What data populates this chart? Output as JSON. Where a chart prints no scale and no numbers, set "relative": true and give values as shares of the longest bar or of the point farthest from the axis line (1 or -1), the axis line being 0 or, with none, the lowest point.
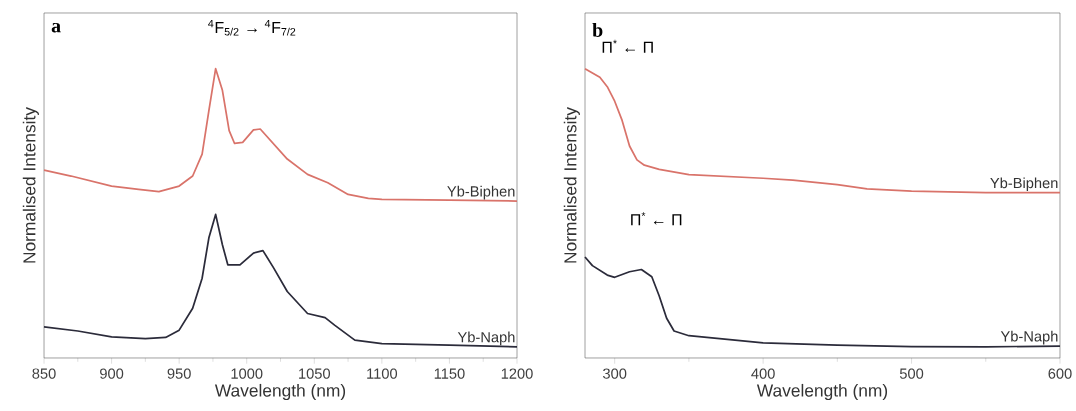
{
  "chart_data": [
    {
      "type": "line",
      "title": "a",
      "xlabel": "Wavelength (nm)",
      "ylabel": "Normalised Intensity",
      "relative": true,
      "legend": false,
      "xlim": [
        850,
        1200
      ],
      "xticks": [
        850,
        900,
        950,
        1000,
        1050,
        1100,
        1150,
        1200
      ],
      "annotations": [
        "$^{4}$F$_{5/2}$ → $^{4}$F$_{7/2}$"
      ],
      "series": [
        {
          "name": "Yb-Biphen",
          "color": "#d9736a",
          "x": [
            850,
            870,
            900,
            920,
            935,
            950,
            960,
            967,
            972,
            977,
            982,
            987,
            991,
            997,
            1005,
            1010,
            1020,
            1030,
            1045,
            1060,
            1075,
            1090,
            1100,
            1150,
            1200
          ],
          "values": [
            0.635,
            0.614,
            0.578,
            0.566,
            0.558,
            0.578,
            0.614,
            0.693,
            0.849,
            1.0,
            0.922,
            0.777,
            0.731,
            0.735,
            0.78,
            0.783,
            0.729,
            0.675,
            0.62,
            0.59,
            0.548,
            0.534,
            0.53,
            0.527,
            0.524
          ]
        },
        {
          "name": "Yb-Naph",
          "color": "#2b2b3a",
          "x": [
            850,
            875,
            900,
            925,
            940,
            950,
            960,
            967,
            972,
            977,
            982,
            986,
            995,
            1005,
            1012,
            1020,
            1030,
            1045,
            1058,
            1065,
            1080,
            1100,
            1150,
            1200
          ],
          "values": [
            0.072,
            0.057,
            0.036,
            0.03,
            0.034,
            0.06,
            0.139,
            0.247,
            0.392,
            0.476,
            0.367,
            0.295,
            0.295,
            0.337,
            0.346,
            0.283,
            0.199,
            0.12,
            0.105,
            0.078,
            0.024,
            0.012,
            0.006,
            0.0
          ]
        }
      ]
    },
    {
      "type": "line",
      "title": "b",
      "xlabel": "Wavelength (nm)",
      "ylabel": "Normalised Intensity",
      "relative": true,
      "legend": false,
      "xlim": [
        280,
        600
      ],
      "xticks": [
        300,
        400,
        500,
        600
      ],
      "annotations": [
        "Π$^{*}$ ← Π",
        "Π$^{*}$ ← Π"
      ],
      "series": [
        {
          "name": "Yb-Biphen",
          "color": "#d9736a",
          "x": [
            280,
            290,
            295,
            300,
            305,
            310,
            315,
            320,
            330,
            350,
            400,
            420,
            450,
            470,
            500,
            550,
            600
          ],
          "values": [
            1.0,
            0.969,
            0.935,
            0.883,
            0.814,
            0.722,
            0.672,
            0.653,
            0.638,
            0.619,
            0.606,
            0.599,
            0.583,
            0.568,
            0.56,
            0.554,
            0.554
          ]
        },
        {
          "name": "Yb-Naph",
          "color": "#2b2b3a",
          "x": [
            280,
            285,
            295,
            300,
            310,
            318,
            325,
            330,
            335,
            340,
            350,
            400,
            450,
            500,
            550,
            600
          ],
          "values": [
            0.323,
            0.292,
            0.258,
            0.25,
            0.27,
            0.278,
            0.252,
            0.183,
            0.103,
            0.057,
            0.04,
            0.014,
            0.006,
            0.001,
            0.0,
            0.003
          ]
        }
      ]
    }
  ]
}
